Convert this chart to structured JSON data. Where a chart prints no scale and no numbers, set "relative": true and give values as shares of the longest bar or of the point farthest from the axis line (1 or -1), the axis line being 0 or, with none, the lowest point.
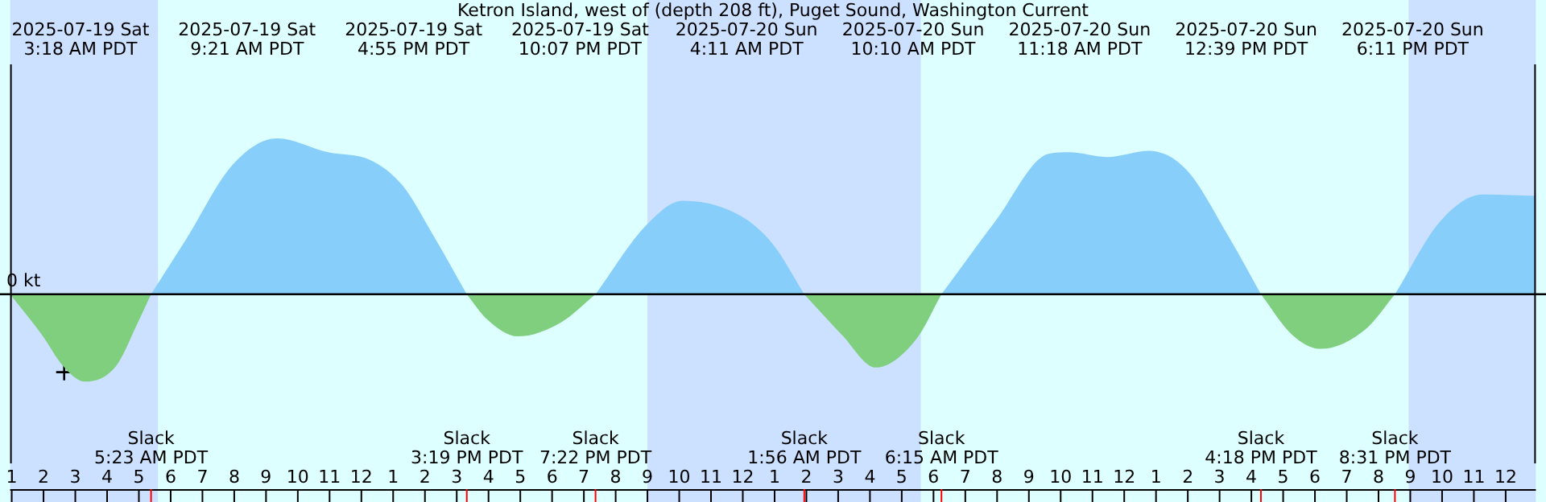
{
  "chart_data": {
    "type": "area",
    "title": "Ketron Island, west of (depth 208 ft), Puget Sound, Washington Current",
    "relative": true,
    "legend": false,
    "x": [
      "2025-07-19T00:57",
      "2025-07-19T01:57",
      "2025-07-19T02:37",
      "2025-07-19T03:18",
      "2025-07-19T04:17",
      "2025-07-19T04:57",
      "2025-07-19T05:23",
      "2025-07-19T06:27",
      "2025-07-19T07:57",
      "2025-07-19T09:21",
      "2025-07-19T10:57",
      "2025-07-19T12:17",
      "2025-07-19T13:17",
      "2025-07-19T14:17",
      "2025-07-19T15:19",
      "2025-07-19T15:57",
      "2025-07-19T16:55",
      "2025-07-19T18:17",
      "2025-07-19T19:22",
      "2025-07-19T20:57",
      "2025-07-19T22:07",
      "2025-07-19T23:57",
      "2025-07-20T00:57",
      "2025-07-20T01:56",
      "2025-07-20T03:07",
      "2025-07-20T04:11",
      "2025-07-20T05:27",
      "2025-07-20T06:15",
      "2025-07-20T07:57",
      "2025-07-20T09:37",
      "2025-07-20T10:17",
      "2025-07-20T11:27",
      "2025-07-20T12:47",
      "2025-07-20T13:57",
      "2025-07-20T15:17",
      "2025-07-20T16:18",
      "2025-07-20T17:17",
      "2025-07-20T18:11",
      "2025-07-20T19:37",
      "2025-07-20T20:31",
      "2025-07-20T21:57",
      "2025-07-20T23:17",
      "2025-07-21T00:57"
    ],
    "series": [
      {
        "color": "#87cefa",
        "values": [
          null,
          null,
          null,
          null,
          null,
          null,
          0,
          0.34,
          0.83,
          1.0,
          0.91,
          0.86,
          0.7,
          0.37,
          0,
          null,
          null,
          null,
          0,
          0.44,
          0.6,
          0.5,
          0.32,
          0,
          null,
          null,
          null,
          0,
          0.47,
          0.9,
          0.91,
          0.88,
          0.92,
          0.8,
          0.37,
          0,
          null,
          null,
          null,
          0,
          0.47,
          0.64,
          0.63
        ]
      },
      {
        "color": "#7fcf7f",
        "values": [
          0,
          -0.26,
          -0.46,
          -0.56,
          -0.46,
          -0.19,
          0,
          null,
          null,
          null,
          null,
          null,
          null,
          null,
          0,
          -0.16,
          -0.27,
          -0.18,
          0,
          null,
          null,
          null,
          null,
          0,
          -0.26,
          -0.47,
          -0.29,
          0,
          null,
          null,
          null,
          null,
          null,
          null,
          null,
          0,
          -0.26,
          -0.35,
          -0.22,
          0,
          null,
          null,
          null
        ]
      },
      {
        "type": "scatter",
        "marker": "cross",
        "color": "#000000",
        "x": [
          "2025-07-19T02:39"
        ],
        "values": [
          -0.5
        ]
      }
    ],
    "xlim": [
      "2025-07-19T00:57",
      "2025-07-21T00:57"
    ],
    "xticks": [
      {
        "value": "2025-07-19T01:00",
        "label": "1"
      },
      {
        "value": "2025-07-19T02:00",
        "label": "2"
      },
      {
        "value": "2025-07-19T03:00",
        "label": "3"
      },
      {
        "value": "2025-07-19T04:00",
        "label": "4"
      },
      {
        "value": "2025-07-19T05:00",
        "label": "5"
      },
      {
        "value": "2025-07-19T06:00",
        "label": "6"
      },
      {
        "value": "2025-07-19T07:00",
        "label": "7"
      },
      {
        "value": "2025-07-19T08:00",
        "label": "8"
      },
      {
        "value": "2025-07-19T09:00",
        "label": "9"
      },
      {
        "value": "2025-07-19T10:00",
        "label": "10"
      },
      {
        "value": "2025-07-19T11:00",
        "label": "11"
      },
      {
        "value": "2025-07-19T12:00",
        "label": "12"
      },
      {
        "value": "2025-07-19T13:00",
        "label": "1"
      },
      {
        "value": "2025-07-19T14:00",
        "label": "2"
      },
      {
        "value": "2025-07-19T15:00",
        "label": "3"
      },
      {
        "value": "2025-07-19T16:00",
        "label": "4"
      },
      {
        "value": "2025-07-19T17:00",
        "label": "5"
      },
      {
        "value": "2025-07-19T18:00",
        "label": "6"
      },
      {
        "value": "2025-07-19T19:00",
        "label": "7"
      },
      {
        "value": "2025-07-19T20:00",
        "label": "8"
      },
      {
        "value": "2025-07-19T21:00",
        "label": "9"
      },
      {
        "value": "2025-07-19T22:00",
        "label": "10"
      },
      {
        "value": "2025-07-19T23:00",
        "label": "11"
      },
      {
        "value": "2025-07-20T00:00",
        "label": "12"
      },
      {
        "value": "2025-07-20T01:00",
        "label": "1"
      },
      {
        "value": "2025-07-20T02:00",
        "label": "2"
      },
      {
        "value": "2025-07-20T03:00",
        "label": "3"
      },
      {
        "value": "2025-07-20T04:00",
        "label": "4"
      },
      {
        "value": "2025-07-20T05:00",
        "label": "5"
      },
      {
        "value": "2025-07-20T06:00",
        "label": "6"
      },
      {
        "value": "2025-07-20T07:00",
        "label": "7"
      },
      {
        "value": "2025-07-20T08:00",
        "label": "8"
      },
      {
        "value": "2025-07-20T09:00",
        "label": "9"
      },
      {
        "value": "2025-07-20T10:00",
        "label": "10"
      },
      {
        "value": "2025-07-20T11:00",
        "label": "11"
      },
      {
        "value": "2025-07-20T12:00",
        "label": "12"
      },
      {
        "value": "2025-07-20T13:00",
        "label": "1"
      },
      {
        "value": "2025-07-20T14:00",
        "label": "2"
      },
      {
        "value": "2025-07-20T15:00",
        "label": "3"
      },
      {
        "value": "2025-07-20T16:00",
        "label": "4"
      },
      {
        "value": "2025-07-20T17:00",
        "label": "5"
      },
      {
        "value": "2025-07-20T18:00",
        "label": "6"
      },
      {
        "value": "2025-07-20T19:00",
        "label": "7"
      },
      {
        "value": "2025-07-20T20:00",
        "label": "8"
      },
      {
        "value": "2025-07-20T21:00",
        "label": "9"
      },
      {
        "value": "2025-07-20T22:00",
        "label": "10"
      },
      {
        "value": "2025-07-20T23:00",
        "label": "11"
      },
      {
        "value": "2025-07-21T00:00",
        "label": "12"
      }
    ],
    "bands": [
      {
        "axis": "x",
        "from": "2025-07-19T00:57",
        "to": "2025-07-19T05:36",
        "color": "#cce0ff"
      },
      {
        "axis": "x",
        "from": "2025-07-19T21:00",
        "to": "2025-07-20T05:36",
        "color": "#cce0ff"
      },
      {
        "axis": "x",
        "from": "2025-07-20T20:57",
        "to": "2025-07-21T00:57",
        "color": "#cce0ff"
      }
    ],
    "annotations": [
      "2025-07-19 Sat\n3:18 AM PDT",
      "2025-07-19 Sat\n9:21 AM PDT",
      "2025-07-19 Sat\n4:55 PM PDT",
      "2025-07-19 Sat\n10:07 PM PDT",
      "2025-07-20 Sun\n4:11 AM PDT",
      "2025-07-20 Sun\n10:10 AM PDT",
      "2025-07-20 Sun\n11:18 AM PDT",
      "2025-07-20 Sun\n12:39 PM PDT",
      "2025-07-20 Sun\n6:11 PM PDT",
      "0 kt",
      {
        "text": "Slack\n5:23 AM PDT",
        "x": "2025-07-19T05:23"
      },
      {
        "text": "Slack\n3:19 PM PDT",
        "x": "2025-07-19T15:19"
      },
      {
        "text": "Slack\n7:22 PM PDT",
        "x": "2025-07-19T19:22"
      },
      {
        "text": "Slack\n1:56 AM PDT",
        "x": "2025-07-20T01:56"
      },
      {
        "text": "Slack\n6:15 AM PDT",
        "x": "2025-07-20T06:15"
      },
      {
        "text": "Slack\n4:18 PM PDT",
        "x": "2025-07-20T16:18"
      },
      {
        "text": "Slack\n8:31 PM PDT",
        "x": "2025-07-20T20:31"
      }
    ]
  }
}
